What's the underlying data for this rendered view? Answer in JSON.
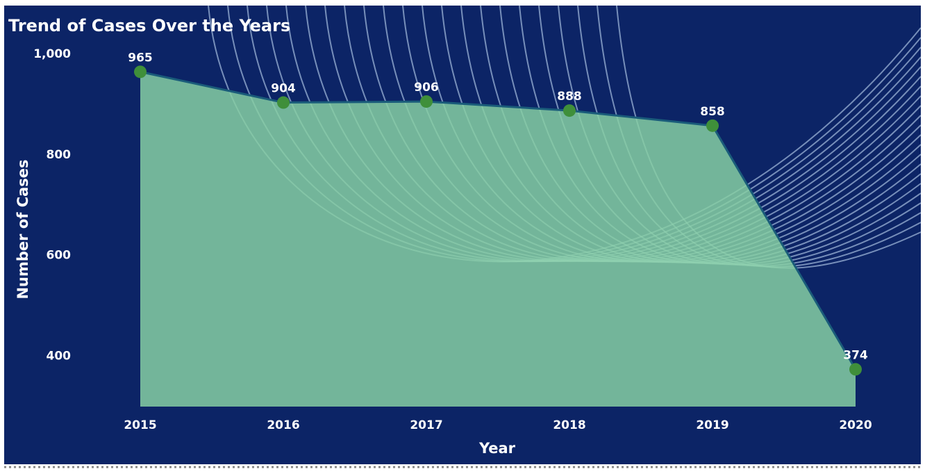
{
  "chart_data": {
    "type": "area",
    "title": "Trend of Cases Over the Years",
    "x_label": "Year",
    "y_label": "Number of Cases",
    "categories": [
      "2015",
      "2016",
      "2017",
      "2018",
      "2019",
      "2020"
    ],
    "values": [
      965,
      904,
      906,
      888,
      858,
      374
    ],
    "color": "#86cfa3",
    "line_color": "#1a5c7a",
    "marker_color": "#3f8f3a",
    "ylim": [
      300,
      1000
    ],
    "yticks": [
      400,
      600,
      800,
      {
        "value": 1000,
        "label": "1,000"
      }
    ],
    "data_labels": true
  }
}
